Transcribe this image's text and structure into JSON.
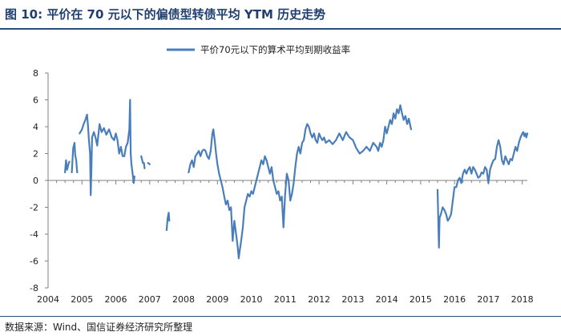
{
  "header": {
    "title": "图 10:  平价在 70 元以下的偏债型转债平均 YTM 历史走势"
  },
  "footer": {
    "source": "数据来源：Wind、国信证券经济研究所整理"
  },
  "colors": {
    "series": "#4a7ebb",
    "axis": "#808080",
    "frame": "#2a4d7a",
    "title": "#1f3f6e"
  },
  "chart_data": {
    "type": "line",
    "title": "",
    "xlabel": "",
    "ylabel": "",
    "xlim": [
      2004,
      2018.15
    ],
    "ylim": [
      -8,
      8
    ],
    "yticks": [
      -8,
      -6,
      -4,
      -2,
      0,
      2,
      4,
      6,
      8
    ],
    "xticks": [
      2004,
      2005,
      2006,
      2007,
      2008,
      2009,
      2010,
      2011,
      2012,
      2013,
      2014,
      2015,
      2016,
      2017,
      2018
    ],
    "grid": false,
    "legend": "top-center",
    "series": [
      {
        "name": "平价70元以下的算术平均到期收益率",
        "color": "#4a7ebb",
        "segments": [
          [
            [
              2004.5,
              0.6
            ],
            [
              2004.53,
              1.5
            ],
            [
              2004.56,
              0.8
            ],
            [
              2004.6,
              1.2
            ],
            [
              2004.63,
              1.4
            ]
          ],
          [
            [
              2004.7,
              0.6
            ],
            [
              2004.74,
              2.4
            ],
            [
              2004.78,
              2.8
            ],
            [
              2004.8,
              1.9
            ],
            [
              2004.83,
              1.5
            ],
            [
              2004.86,
              0.6
            ]
          ],
          [
            [
              2004.93,
              3.5
            ],
            [
              2005.0,
              3.8
            ],
            [
              2005.05,
              4.2
            ],
            [
              2005.1,
              4.5
            ],
            [
              2005.15,
              4.9
            ],
            [
              2005.18,
              4.0
            ],
            [
              2005.2,
              3.2
            ],
            [
              2005.24,
              2.0
            ],
            [
              2005.26,
              -1.1
            ],
            [
              2005.28,
              1.0
            ],
            [
              2005.3,
              3.2
            ],
            [
              2005.35,
              3.6
            ],
            [
              2005.4,
              3.2
            ],
            [
              2005.45,
              2.6
            ],
            [
              2005.52,
              4.2
            ],
            [
              2005.58,
              3.6
            ],
            [
              2005.65,
              3.9
            ],
            [
              2005.72,
              3.4
            ],
            [
              2005.8,
              3.8
            ],
            [
              2005.88,
              3.2
            ],
            [
              2005.95,
              3.0
            ],
            [
              2006.0,
              3.5
            ],
            [
              2006.05,
              3.0
            ],
            [
              2006.1,
              2.0
            ],
            [
              2006.15,
              2.5
            ],
            [
              2006.2,
              1.8
            ],
            [
              2006.25,
              1.8
            ],
            [
              2006.3,
              2.5
            ],
            [
              2006.35,
              2.8
            ],
            [
              2006.4,
              3.8
            ],
            [
              2006.42,
              6.0
            ],
            [
              2006.44,
              2.0
            ],
            [
              2006.46,
              1.2
            ],
            [
              2006.5,
              0.4
            ],
            [
              2006.53,
              -0.2
            ],
            [
              2006.55,
              0.3
            ]
          ],
          [
            [
              2006.75,
              1.8
            ],
            [
              2006.78,
              1.5
            ],
            [
              2006.8,
              1.3
            ]
          ],
          [
            [
              2006.83,
              1.3
            ],
            [
              2006.85,
              0.9
            ]
          ],
          [
            [
              2006.95,
              1.3
            ],
            [
              2007.0,
              1.2
            ]
          ],
          [
            [
              2007.5,
              -3.7
            ],
            [
              2007.53,
              -2.8
            ],
            [
              2007.56,
              -2.4
            ],
            [
              2007.58,
              -3.0
            ]
          ],
          [
            [
              2008.15,
              0.6
            ],
            [
              2008.2,
              1.2
            ],
            [
              2008.25,
              1.5
            ],
            [
              2008.3,
              1.0
            ],
            [
              2008.35,
              1.8
            ],
            [
              2008.4,
              2.0
            ],
            [
              2008.45,
              2.2
            ],
            [
              2008.5,
              1.8
            ],
            [
              2008.55,
              2.2
            ],
            [
              2008.6,
              2.3
            ],
            [
              2008.65,
              2.2
            ],
            [
              2008.7,
              1.8
            ],
            [
              2008.75,
              1.6
            ],
            [
              2008.8,
              2.2
            ],
            [
              2008.85,
              3.5
            ],
            [
              2008.88,
              3.8
            ],
            [
              2008.92,
              3.0
            ],
            [
              2008.96,
              2.0
            ],
            [
              2009.0,
              1.2
            ],
            [
              2009.05,
              0.5
            ],
            [
              2009.1,
              0
            ],
            [
              2009.15,
              -0.5
            ],
            [
              2009.2,
              -1.2
            ],
            [
              2009.25,
              -1.8
            ],
            [
              2009.3,
              -1.5
            ],
            [
              2009.35,
              -2.2
            ],
            [
              2009.4,
              -2.0
            ],
            [
              2009.45,
              -4.5
            ],
            [
              2009.5,
              -3.0
            ],
            [
              2009.55,
              -4.0
            ],
            [
              2009.6,
              -5.0
            ],
            [
              2009.63,
              -5.8
            ],
            [
              2009.66,
              -5.2
            ],
            [
              2009.7,
              -4.5
            ],
            [
              2009.75,
              -3.5
            ],
            [
              2009.8,
              -2.0
            ],
            [
              2009.85,
              -1.5
            ],
            [
              2009.9,
              -1.0
            ],
            [
              2009.95,
              -1.2
            ],
            [
              2010.0,
              -0.8
            ],
            [
              2010.05,
              -1.0
            ],
            [
              2010.1,
              -0.5
            ],
            [
              2010.15,
              0
            ],
            [
              2010.2,
              0.5
            ],
            [
              2010.25,
              1.0
            ],
            [
              2010.3,
              1.5
            ],
            [
              2010.35,
              1.2
            ],
            [
              2010.4,
              1.8
            ],
            [
              2010.45,
              1.5
            ],
            [
              2010.5,
              1.0
            ],
            [
              2010.55,
              0.5
            ],
            [
              2010.6,
              1.0
            ],
            [
              2010.65,
              0
            ],
            [
              2010.7,
              -0.5
            ],
            [
              2010.75,
              -1.0
            ],
            [
              2010.8,
              -0.8
            ],
            [
              2010.85,
              -1.5
            ],
            [
              2010.9,
              -1.2
            ],
            [
              2010.95,
              -3.5
            ],
            [
              2011.0,
              -1.0
            ],
            [
              2011.05,
              0.5
            ],
            [
              2011.1,
              0
            ],
            [
              2011.15,
              -1.5
            ],
            [
              2011.2,
              -1.0
            ],
            [
              2011.25,
              -0.2
            ],
            [
              2011.3,
              1.0
            ],
            [
              2011.35,
              2.0
            ],
            [
              2011.4,
              2.5
            ],
            [
              2011.45,
              2.0
            ],
            [
              2011.5,
              2.8
            ],
            [
              2011.55,
              3.0
            ],
            [
              2011.6,
              3.8
            ],
            [
              2011.65,
              4.2
            ],
            [
              2011.7,
              4.0
            ],
            [
              2011.75,
              3.5
            ],
            [
              2011.8,
              3.2
            ],
            [
              2011.85,
              3.5
            ],
            [
              2011.9,
              3.0
            ],
            [
              2011.95,
              2.8
            ],
            [
              2012.0,
              3.5
            ],
            [
              2012.05,
              3.2
            ],
            [
              2012.1,
              3.0
            ],
            [
              2012.15,
              3.2
            ],
            [
              2012.2,
              2.8
            ],
            [
              2012.3,
              3.0
            ],
            [
              2012.4,
              2.7
            ],
            [
              2012.5,
              3.0
            ],
            [
              2012.6,
              3.5
            ],
            [
              2012.7,
              3.0
            ],
            [
              2012.8,
              3.6
            ],
            [
              2012.9,
              3.2
            ],
            [
              2013.0,
              3.0
            ],
            [
              2013.1,
              2.4
            ],
            [
              2013.2,
              2.0
            ],
            [
              2013.3,
              2.2
            ],
            [
              2013.4,
              2.5
            ],
            [
              2013.5,
              2.2
            ],
            [
              2013.6,
              2.8
            ],
            [
              2013.7,
              2.5
            ],
            [
              2013.75,
              2.2
            ],
            [
              2013.8,
              2.8
            ],
            [
              2013.85,
              2.5
            ],
            [
              2013.9,
              3.0
            ],
            [
              2013.95,
              4.0
            ],
            [
              2014.0,
              3.5
            ],
            [
              2014.05,
              4.0
            ],
            [
              2014.1,
              4.5
            ],
            [
              2014.15,
              4.2
            ],
            [
              2014.2,
              5.0
            ],
            [
              2014.25,
              4.6
            ],
            [
              2014.3,
              5.3
            ],
            [
              2014.35,
              5.0
            ],
            [
              2014.4,
              5.6
            ],
            [
              2014.45,
              5.0
            ],
            [
              2014.5,
              4.5
            ],
            [
              2014.55,
              4.8
            ],
            [
              2014.6,
              4.2
            ],
            [
              2014.65,
              4.6
            ],
            [
              2014.7,
              4.0
            ],
            [
              2014.72,
              3.8
            ]
          ],
          [
            [
              2015.5,
              -0.7
            ],
            [
              2015.52,
              -3.0
            ],
            [
              2015.54,
              -5.0
            ],
            [
              2015.56,
              -2.8
            ],
            [
              2015.6,
              -2.5
            ],
            [
              2015.65,
              -2.0
            ],
            [
              2015.7,
              -2.2
            ],
            [
              2015.75,
              -2.5
            ],
            [
              2015.8,
              -3.0
            ],
            [
              2015.85,
              -2.8
            ],
            [
              2015.9,
              -2.5
            ],
            [
              2015.95,
              -1.5
            ],
            [
              2016.0,
              -0.5
            ],
            [
              2016.05,
              -0.5
            ],
            [
              2016.1,
              0
            ],
            [
              2016.15,
              0.2
            ],
            [
              2016.2,
              -0.2
            ],
            [
              2016.25,
              0.5
            ],
            [
              2016.3,
              0.8
            ],
            [
              2016.35,
              0.5
            ],
            [
              2016.4,
              0.8
            ],
            [
              2016.45,
              1.0
            ],
            [
              2016.5,
              0.5
            ],
            [
              2016.55,
              1.0
            ],
            [
              2016.6,
              0.8
            ],
            [
              2016.65,
              0.5
            ],
            [
              2016.7,
              0.2
            ],
            [
              2016.75,
              0.3
            ],
            [
              2016.8,
              0.6
            ],
            [
              2016.85,
              0.5
            ],
            [
              2016.9,
              1.0
            ],
            [
              2016.95,
              0.8
            ],
            [
              2017.0,
              -0.2
            ],
            [
              2017.05,
              0.8
            ],
            [
              2017.1,
              1.2
            ],
            [
              2017.15,
              1.5
            ],
            [
              2017.2,
              1.6
            ],
            [
              2017.25,
              2.5
            ],
            [
              2017.3,
              3.0
            ],
            [
              2017.35,
              2.5
            ],
            [
              2017.4,
              1.5
            ],
            [
              2017.45,
              1.2
            ],
            [
              2017.5,
              1.8
            ],
            [
              2017.55,
              1.5
            ],
            [
              2017.6,
              1.2
            ],
            [
              2017.65,
              1.6
            ],
            [
              2017.7,
              1.5
            ],
            [
              2017.75,
              2.0
            ],
            [
              2017.8,
              2.5
            ],
            [
              2017.85,
              2.2
            ],
            [
              2017.9,
              2.8
            ],
            [
              2017.95,
              3.2
            ],
            [
              2018.0,
              3.5
            ],
            [
              2018.03,
              3.6
            ],
            [
              2018.06,
              3.3
            ],
            [
              2018.09,
              3.5
            ],
            [
              2018.12,
              3.2
            ],
            [
              2018.15,
              3.5
            ]
          ]
        ]
      }
    ]
  }
}
